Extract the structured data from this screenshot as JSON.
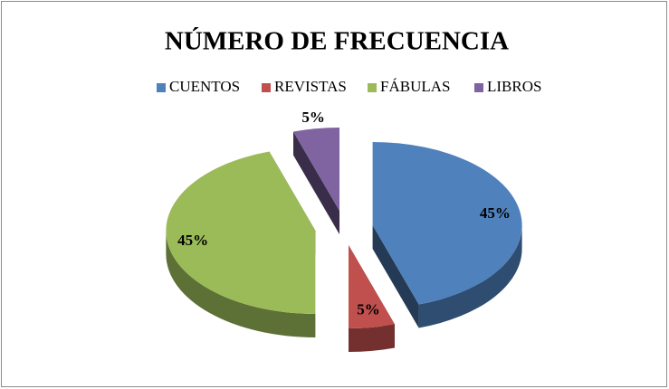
{
  "chart_data": {
    "type": "pie",
    "title": "NÚMERO DE FRECUENCIA",
    "categories": [
      "CUENTOS",
      "REVISTAS",
      "FÁBULAS",
      "LIBROS"
    ],
    "values": [
      45,
      5,
      45,
      5
    ],
    "value_labels": [
      "45%",
      "5%",
      "45%",
      "5%"
    ],
    "colors": [
      "#4f81bd",
      "#c0504d",
      "#9bbb59",
      "#8064a2"
    ],
    "legend": "top"
  }
}
